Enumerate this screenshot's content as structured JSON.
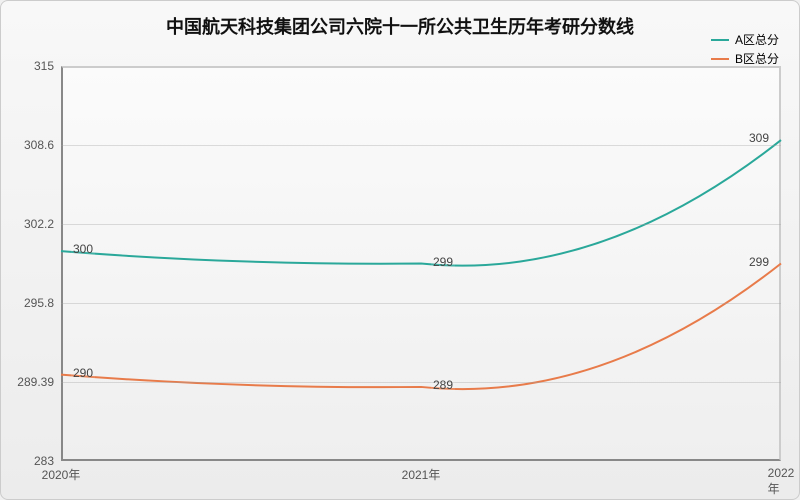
{
  "chart": {
    "type": "line",
    "title": "中国航天科技集团公司六院十一所公共卫生历年考研分数线",
    "title_fontsize": 18,
    "background_gradient": [
      "#f8f8f8",
      "#ececec"
    ],
    "plot_background_gradient": [
      "#fbfbfb",
      "#efefef"
    ],
    "border_color": "#888888",
    "grid_color": "#b0b0b0",
    "ylim": [
      283,
      315
    ],
    "yticks": [
      283,
      289.39,
      295.8,
      302.2,
      308.6,
      315
    ],
    "categories": [
      "2020年",
      "2021年",
      "2022年"
    ],
    "legend_position": "top-right",
    "label_fontsize": 12,
    "series": [
      {
        "name": "A区总分",
        "color": "#2aa89a",
        "line_width": 2,
        "values": [
          300,
          299,
          309
        ],
        "smooth": true
      },
      {
        "name": "B区总分",
        "color": "#e87b4a",
        "line_width": 2,
        "values": [
          290,
          289,
          299
        ],
        "smooth": true
      }
    ]
  }
}
